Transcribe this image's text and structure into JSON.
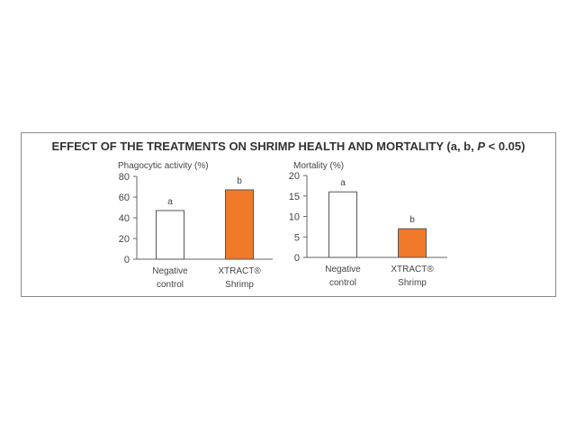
{
  "figure": {
    "title_pre": "EFFECT OF THE TREATMENTS ON SHRIMP HEALTH AND MORTALITY (a, b, ",
    "title_p": "P",
    "title_post": " < 0.05)"
  },
  "colors": {
    "negative": "#ffffff",
    "treatment": "#f07a2a",
    "outline": "#555555",
    "axis": "#666666"
  },
  "chart_data": [
    {
      "type": "bar",
      "title": "Phagocytic activity (%)",
      "categories": [
        [
          "Negative",
          "control"
        ],
        [
          "XTRACT®",
          "Shrimp"
        ]
      ],
      "values": [
        47,
        67
      ],
      "significance": [
        "a",
        "b"
      ],
      "ylim": [
        0,
        80
      ],
      "yticks": [
        0,
        20,
        40,
        60,
        80
      ],
      "grid": false
    },
    {
      "type": "bar",
      "title": "Mortality (%)",
      "categories": [
        [
          "Negative",
          "control"
        ],
        [
          "XTRACT®",
          "Shrimp"
        ]
      ],
      "values": [
        16,
        7
      ],
      "significance": [
        "a",
        "b"
      ],
      "ylim": [
        0,
        20
      ],
      "yticks": [
        0,
        5,
        10,
        15,
        20
      ],
      "grid": false
    }
  ]
}
